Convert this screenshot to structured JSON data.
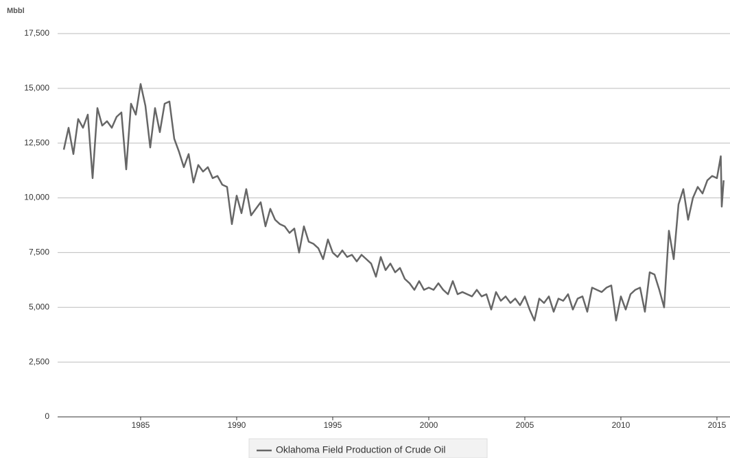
{
  "chart_data": {
    "type": "line",
    "y_label": "Mbbl",
    "x": [
      1981.0,
      1981.25,
      1981.5,
      1981.75,
      1982.0,
      1982.25,
      1982.5,
      1982.75,
      1983.0,
      1983.25,
      1983.5,
      1983.75,
      1984.0,
      1984.25,
      1984.5,
      1984.75,
      1985.0,
      1985.25,
      1985.5,
      1985.75,
      1986.0,
      1986.25,
      1986.5,
      1986.75,
      1987.0,
      1987.25,
      1987.5,
      1987.75,
      1988.0,
      1988.25,
      1988.5,
      1988.75,
      1989.0,
      1989.25,
      1989.5,
      1989.75,
      1990.0,
      1990.25,
      1990.5,
      1990.75,
      1991.0,
      1991.25,
      1991.5,
      1991.75,
      1992.0,
      1992.25,
      1992.5,
      1992.75,
      1993.0,
      1993.25,
      1993.5,
      1993.75,
      1994.0,
      1994.25,
      1994.5,
      1994.75,
      1995.0,
      1995.25,
      1995.5,
      1995.75,
      1996.0,
      1996.25,
      1996.5,
      1996.75,
      1997.0,
      1997.25,
      1997.5,
      1997.75,
      1998.0,
      1998.25,
      1998.5,
      1998.75,
      1999.0,
      1999.25,
      1999.5,
      1999.75,
      2000.0,
      2000.25,
      2000.5,
      2000.75,
      2001.0,
      2001.25,
      2001.5,
      2001.75,
      2002.0,
      2002.25,
      2002.5,
      2002.75,
      2003.0,
      2003.25,
      2003.5,
      2003.75,
      2004.0,
      2004.25,
      2004.5,
      2004.75,
      2005.0,
      2005.25,
      2005.5,
      2005.75,
      2006.0,
      2006.25,
      2006.5,
      2006.75,
      2007.0,
      2007.25,
      2007.5,
      2007.75,
      2008.0,
      2008.25,
      2008.5,
      2008.75,
      2009.0,
      2009.25,
      2009.5,
      2009.75,
      2010.0,
      2010.25,
      2010.5,
      2010.75,
      2011.0,
      2011.25,
      2011.5,
      2011.75,
      2012.0,
      2012.25,
      2012.5,
      2012.75,
      2013.0,
      2013.25,
      2013.5,
      2013.75,
      2014.0,
      2014.25,
      2014.5,
      2014.75,
      2015.0,
      2015.2,
      2015.25,
      2015.35
    ],
    "series": [
      {
        "name": "Oklahoma Field Production of Crude Oil",
        "color": "#666666",
        "values": [
          12200,
          13200,
          12000,
          13600,
          13200,
          13800,
          10900,
          14100,
          13300,
          13500,
          13200,
          13700,
          13900,
          11300,
          14300,
          13800,
          15200,
          14200,
          12300,
          14100,
          13000,
          14300,
          14400,
          12700,
          12100,
          11400,
          12000,
          10700,
          11500,
          11200,
          11400,
          10900,
          11000,
          10600,
          10500,
          8800,
          10100,
          9300,
          10400,
          9200,
          9500,
          9800,
          8700,
          9500,
          9000,
          8800,
          8700,
          8400,
          8600,
          7500,
          8700,
          8000,
          7900,
          7700,
          7200,
          8100,
          7500,
          7300,
          7600,
          7300,
          7400,
          7100,
          7400,
          7200,
          7000,
          6400,
          7300,
          6700,
          7000,
          6600,
          6800,
          6300,
          6100,
          5800,
          6200,
          5800,
          5900,
          5800,
          6100,
          5800,
          5600,
          6200,
          5600,
          5700,
          5600,
          5500,
          5800,
          5500,
          5600,
          4900,
          5700,
          5300,
          5500,
          5200,
          5400,
          5100,
          5500,
          4900,
          4400,
          5400,
          5200,
          5500,
          4800,
          5400,
          5300,
          5600,
          4900,
          5400,
          5500,
          4800,
          5900,
          5800,
          5700,
          5900,
          6000,
          4400,
          5500,
          4900,
          5600,
          5800,
          5900,
          4800,
          6600,
          6500,
          5800,
          5000,
          8500,
          7200,
          9700,
          10400,
          9000,
          10000,
          10500,
          10200,
          10800,
          11000,
          10900,
          11900,
          9600,
          10800
        ]
      }
    ],
    "xlim": [
      1980.68,
      2015.68
    ],
    "ylim": [
      0,
      17500
    ],
    "xticks": [
      1985,
      1990,
      1995,
      2000,
      2005,
      2010,
      2015
    ],
    "yticks": [
      0,
      {
        "value": 2500,
        "label": "2,500"
      },
      {
        "value": 5000,
        "label": "5,000"
      },
      {
        "value": 7500,
        "label": "7,500"
      },
      {
        "value": 10000,
        "label": "10,000"
      },
      {
        "value": 12500,
        "label": "12,500"
      },
      {
        "value": 15000,
        "label": "15,000"
      },
      {
        "value": 17500,
        "label": "17,500"
      }
    ],
    "grid": true
  }
}
